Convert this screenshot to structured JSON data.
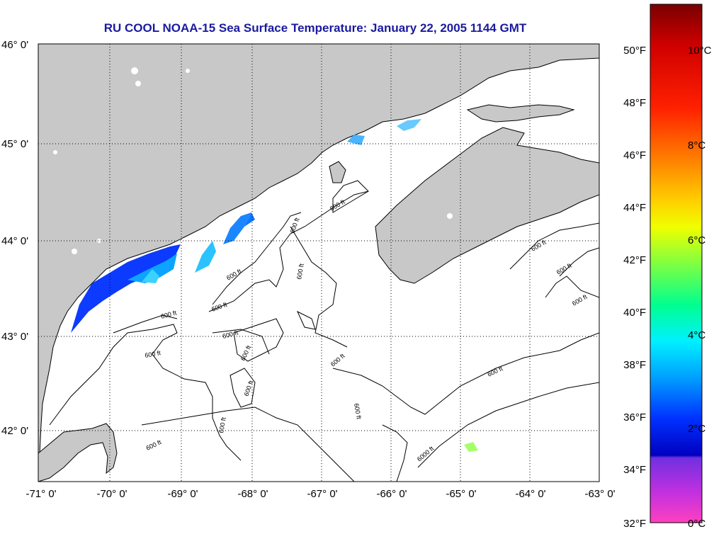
{
  "title": "RU COOL  NOAA-15  Sea Surface Temperature:  January 22, 2005 1144 GMT",
  "lat_labels": [
    "46° 0'",
    "45° 0'",
    "44° 0'",
    "43° 0'",
    "42° 0'"
  ],
  "lon_labels": [
    "-71° 0'",
    "-70° 0'",
    "-69° 0'",
    "-68° 0'",
    "-67° 0'",
    "-66° 0'",
    "-65° 0'",
    "-64° 0'",
    "-63° 0'"
  ],
  "contour_label": "600 ft",
  "contour_label_deep": "6000 ft",
  "colorbar": {
    "fahrenheit": [
      "50°F",
      "48°F",
      "46°F",
      "44°F",
      "42°F",
      "40°F",
      "38°F",
      "36°F",
      "34°F",
      "32°F"
    ],
    "celsius": [
      "10°C",
      "8°C",
      "6°C",
      "4°C",
      "2°C",
      "0°C"
    ]
  },
  "colors": {
    "land": "#c8c8c8",
    "ocean": "#ffffff",
    "title": "#1a1aa0"
  }
}
